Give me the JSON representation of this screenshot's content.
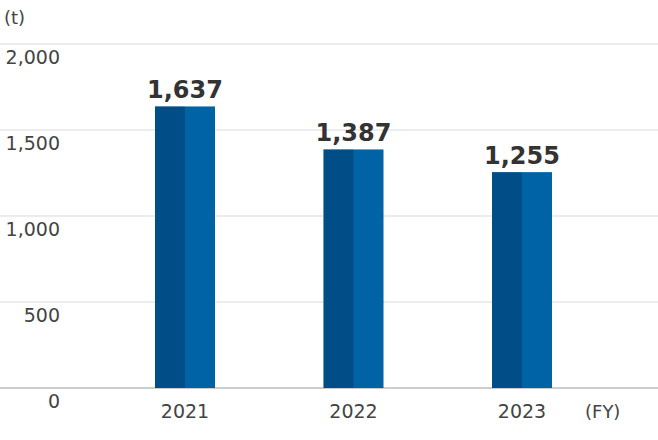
{
  "chart_data": {
    "type": "bar",
    "y_label": "(t)",
    "x_label": "(FY)",
    "categories": [
      "2021",
      "2022",
      "2023"
    ],
    "values": [
      1637,
      1387,
      1255
    ],
    "value_labels": [
      "1,637",
      "1,387",
      "1,255"
    ],
    "color": "#0063a6",
    "ylim": [
      0,
      2000
    ],
    "yticks": [
      0,
      500,
      {
        "value": 1000,
        "label": "1,000"
      },
      {
        "value": 1500,
        "label": "1,500"
      },
      {
        "value": 2000,
        "label": "2,000"
      }
    ],
    "grid": true,
    "data_labels": true
  }
}
